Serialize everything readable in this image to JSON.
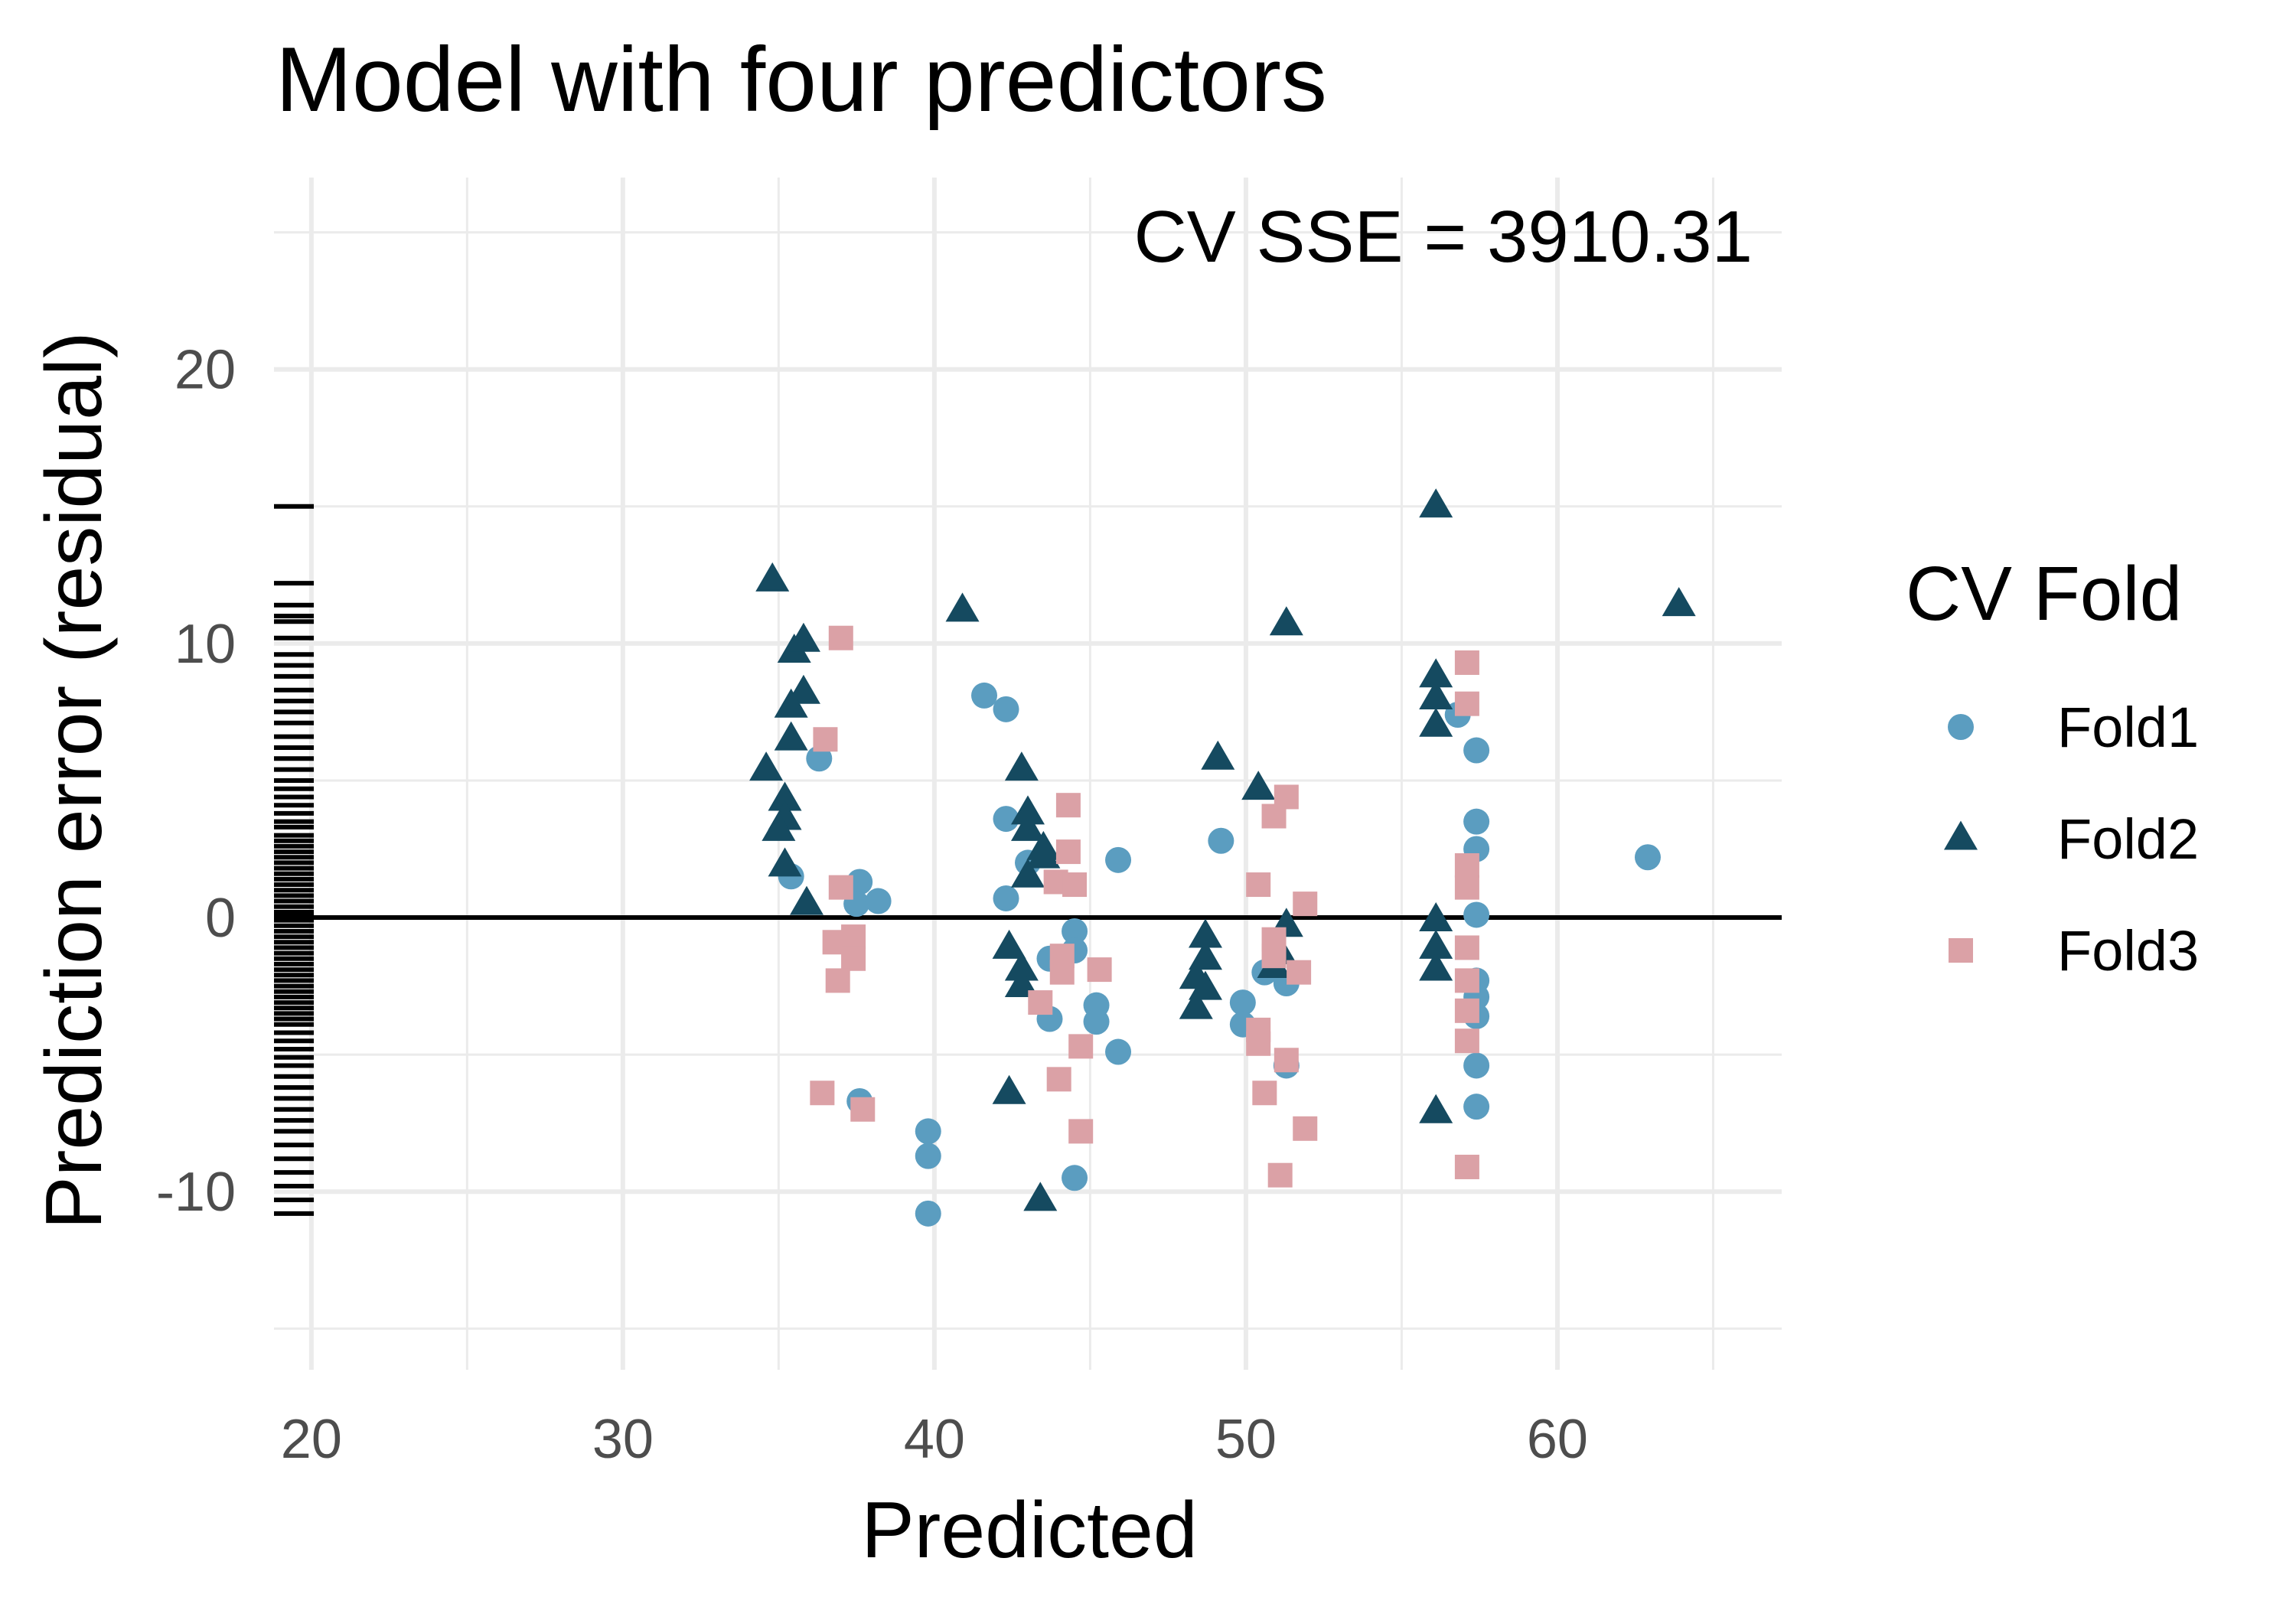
{
  "chart_data": {
    "type": "scatter",
    "title": "Model with four predictors",
    "annotation": "CV SSE = 3910.31",
    "xlabel": "Predicted",
    "ylabel": "Prediction error (residual)",
    "xlim": [
      18.8,
      67.2
    ],
    "ylim": [
      -16.5,
      27
    ],
    "x_ticks": [
      20,
      30,
      40,
      50,
      60
    ],
    "y_ticks": [
      -10,
      0,
      10,
      20
    ],
    "grid": true,
    "reference_line_y": 0,
    "legend": {
      "title": "CV Fold",
      "position": "right",
      "entries": [
        "Fold1",
        "Fold2",
        "Fold3"
      ]
    },
    "colors": {
      "Fold1": "#5b9dc0",
      "Fold2": "#154a60",
      "Fold3": "#dba1a6"
    },
    "series": [
      {
        "name": "Fold1",
        "shape": "circle",
        "points": [
          [
            36.3,
            5.8
          ],
          [
            35.4,
            1.5
          ],
          [
            37.6,
            1.3
          ],
          [
            37.5,
            0.5
          ],
          [
            38.2,
            0.6
          ],
          [
            37.6,
            -6.7
          ],
          [
            39.8,
            -7.8
          ],
          [
            39.8,
            -8.7
          ],
          [
            39.8,
            -10.8
          ],
          [
            41.6,
            8.1
          ],
          [
            42.3,
            7.6
          ],
          [
            42.3,
            3.6
          ],
          [
            42.3,
            0.7
          ],
          [
            43.0,
            2.0
          ],
          [
            43.7,
            -1.5
          ],
          [
            43.7,
            -3.7
          ],
          [
            44.5,
            -0.5
          ],
          [
            44.5,
            -1.2
          ],
          [
            44.5,
            -9.5
          ],
          [
            45.2,
            -3.2
          ],
          [
            45.2,
            -3.8
          ],
          [
            45.9,
            2.1
          ],
          [
            45.9,
            -4.9
          ],
          [
            49.2,
            2.8
          ],
          [
            49.9,
            -3.1
          ],
          [
            49.9,
            -3.9
          ],
          [
            50.6,
            -2.0
          ],
          [
            51.3,
            -2.4
          ],
          [
            51.3,
            -5.4
          ],
          [
            56.8,
            7.4
          ],
          [
            57.4,
            6.1
          ],
          [
            57.4,
            3.5
          ],
          [
            57.4,
            2.5
          ],
          [
            57.4,
            0.1
          ],
          [
            57.4,
            -2.3
          ],
          [
            57.4,
            -2.9
          ],
          [
            57.4,
            -3.6
          ],
          [
            57.4,
            -5.4
          ],
          [
            57.4,
            -6.9
          ],
          [
            62.9,
            2.2
          ]
        ]
      },
      {
        "name": "Fold2",
        "shape": "triangle",
        "points": [
          [
            34.8,
            12.3
          ],
          [
            35.5,
            9.7
          ],
          [
            35.8,
            10.1
          ],
          [
            35.8,
            8.2
          ],
          [
            35.4,
            7.7
          ],
          [
            35.4,
            6.5
          ],
          [
            34.6,
            5.4
          ],
          [
            35.2,
            4.3
          ],
          [
            35.2,
            3.6
          ],
          [
            35.0,
            3.2
          ],
          [
            35.2,
            1.9
          ],
          [
            35.9,
            0.5
          ],
          [
            40.9,
            11.2
          ],
          [
            42.8,
            5.4
          ],
          [
            43.0,
            3.8
          ],
          [
            43.0,
            3.2
          ],
          [
            43.5,
            2.5
          ],
          [
            43.5,
            2.2
          ],
          [
            43.0,
            1.5
          ],
          [
            42.4,
            -1.1
          ],
          [
            42.8,
            -1.9
          ],
          [
            42.8,
            -2.5
          ],
          [
            42.4,
            -6.4
          ],
          [
            43.4,
            -10.3
          ],
          [
            48.7,
            -0.7
          ],
          [
            48.7,
            -1.5
          ],
          [
            48.4,
            -2.2
          ],
          [
            48.7,
            -2.6
          ],
          [
            48.4,
            -3.3
          ],
          [
            49.1,
            5.8
          ],
          [
            50.4,
            4.7
          ],
          [
            51.3,
            10.7
          ],
          [
            51.1,
            -1.3
          ],
          [
            50.9,
            -1.8
          ],
          [
            51.3,
            -0.3
          ],
          [
            56.1,
            15.0
          ],
          [
            56.1,
            8.8
          ],
          [
            56.1,
            8.0
          ],
          [
            56.1,
            7.0
          ],
          [
            56.1,
            -0.1
          ],
          [
            56.1,
            -1.1
          ],
          [
            56.1,
            -1.9
          ],
          [
            56.1,
            -7.1
          ],
          [
            63.9,
            11.4
          ]
        ]
      },
      {
        "name": "Fold3",
        "shape": "square",
        "points": [
          [
            37.0,
            10.2
          ],
          [
            36.5,
            6.5
          ],
          [
            37.0,
            1.1
          ],
          [
            36.8,
            -0.9
          ],
          [
            37.4,
            -0.7
          ],
          [
            37.4,
            -1.5
          ],
          [
            36.9,
            -2.3
          ],
          [
            36.4,
            -6.4
          ],
          [
            37.7,
            -7.0
          ],
          [
            44.3,
            4.1
          ],
          [
            44.3,
            2.4
          ],
          [
            43.9,
            1.3
          ],
          [
            44.5,
            1.2
          ],
          [
            44.1,
            -1.4
          ],
          [
            44.1,
            -2.0
          ],
          [
            45.3,
            -1.9
          ],
          [
            43.4,
            -3.1
          ],
          [
            44.0,
            -5.9
          ],
          [
            44.7,
            -4.7
          ],
          [
            44.7,
            -7.8
          ],
          [
            50.4,
            1.2
          ],
          [
            50.9,
            3.7
          ],
          [
            51.3,
            4.4
          ],
          [
            51.9,
            0.5
          ],
          [
            50.9,
            -0.8
          ],
          [
            50.9,
            -1.4
          ],
          [
            51.7,
            -2.0
          ],
          [
            50.4,
            -4.1
          ],
          [
            50.4,
            -4.6
          ],
          [
            50.6,
            -6.4
          ],
          [
            51.3,
            -5.2
          ],
          [
            51.9,
            -7.7
          ],
          [
            51.1,
            -9.4
          ],
          [
            57.1,
            9.3
          ],
          [
            57.1,
            7.8
          ],
          [
            57.1,
            1.9
          ],
          [
            57.1,
            1.1
          ],
          [
            57.1,
            -1.1
          ],
          [
            57.1,
            -2.3
          ],
          [
            57.1,
            -3.4
          ],
          [
            57.1,
            -4.5
          ],
          [
            57.1,
            -9.1
          ]
        ]
      }
    ],
    "rug_y": [
      15,
      12.2,
      11.4,
      11,
      10.8,
      10.2,
      9.6,
      9.2,
      8.8,
      8.3,
      7.9,
      7.5,
      7.1,
      6.6,
      6.2,
      5.8,
      5.4,
      5.0,
      4.7,
      4.4,
      4.1,
      3.8,
      3.5,
      3.3,
      3.0,
      2.8,
      2.6,
      2.4,
      2.2,
      2.0,
      1.8,
      1.6,
      1.4,
      1.2,
      1.0,
      0.8,
      0.6,
      0.4,
      0.2,
      0.05,
      -0.1,
      -0.3,
      -0.5,
      -0.7,
      -0.9,
      -1.1,
      -1.3,
      -1.5,
      -1.7,
      -1.9,
      -2.1,
      -2.3,
      -2.5,
      -2.7,
      -2.9,
      -3.1,
      -3.3,
      -3.5,
      -3.7,
      -3.9,
      -4.2,
      -4.5,
      -4.8,
      -5.1,
      -5.4,
      -5.8,
      -6.2,
      -6.6,
      -7.0,
      -7.4,
      -7.8,
      -8.3,
      -8.8,
      -9.3,
      -9.8,
      -10.3,
      -10.8
    ]
  }
}
